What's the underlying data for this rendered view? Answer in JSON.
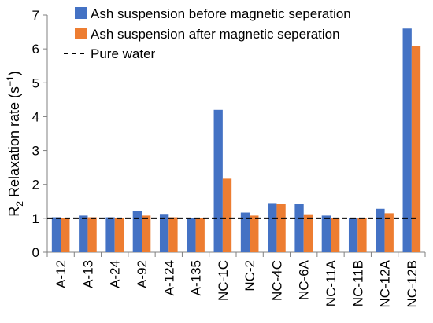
{
  "chart_data": {
    "type": "bar",
    "categories": [
      "A-12",
      "A-13",
      "A-24",
      "A-92",
      "A-124",
      "A-135",
      "NC-1C",
      "NC-2",
      "NC-4C",
      "NC-6A",
      "NC-11A",
      "NC-11B",
      "NC-12A",
      "NC-12B"
    ],
    "series": [
      {
        "name": "Ash suspension before magnetic seperation",
        "color": "#4472C4",
        "values": [
          1.03,
          1.08,
          1.03,
          1.22,
          1.13,
          1.02,
          4.2,
          1.17,
          1.45,
          1.42,
          1.08,
          1.02,
          1.28,
          6.6
        ]
      },
      {
        "name": "Ash suspension after magnetic seperation",
        "color": "#ED7D31",
        "values": [
          1.0,
          1.03,
          1.0,
          1.08,
          1.03,
          1.0,
          2.17,
          1.08,
          1.43,
          1.12,
          1.0,
          1.0,
          1.15,
          6.08
        ]
      }
    ],
    "reference_line": {
      "name": "Pure water",
      "value": 1.0,
      "color": "#000000",
      "style": "dashed"
    },
    "ylabel_main": "R",
    "ylabel_sub": "2",
    "ylabel_rest": " Relaxation rate (s",
    "ylabel_sup": "−1",
    "ylabel_end": ")",
    "ylim": [
      0,
      7
    ],
    "yticks": [
      "0",
      "1",
      "2",
      "3",
      "4",
      "5",
      "6",
      "7"
    ],
    "grid": false,
    "legend_position": "top-right"
  }
}
